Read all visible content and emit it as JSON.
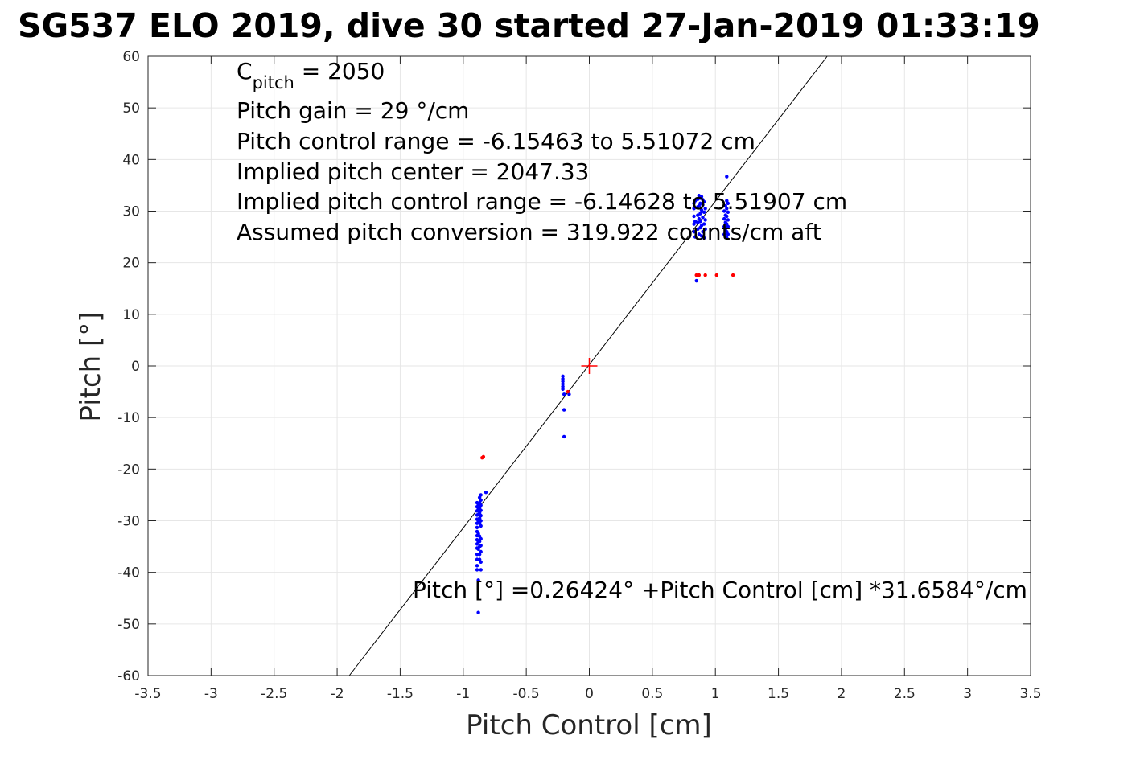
{
  "chart_data": {
    "type": "scatter",
    "title": "SG537 ELO 2019, dive 30 started 27-Jan-2019 01:33:19",
    "xlabel": "Pitch Control [cm]",
    "ylabel": "Pitch [°]",
    "xlim": [
      -3.5,
      3.5
    ],
    "ylim": [
      -60,
      60
    ],
    "xticks": [
      -3.5,
      -3,
      -2.5,
      -2,
      -1.5,
      -1,
      -0.5,
      0,
      0.5,
      1,
      1.5,
      2,
      2.5,
      3,
      3.5
    ],
    "yticks": [
      -60,
      -50,
      -40,
      -30,
      -20,
      -10,
      0,
      10,
      20,
      30,
      40,
      50,
      60
    ],
    "xtick_labels": [
      "-3.5",
      "-3",
      "-2.5",
      "-2",
      "-1.5",
      "-1",
      "-0.5",
      "0",
      "0.5",
      "1",
      "1.5",
      "2",
      "2.5",
      "3",
      "3.5"
    ],
    "ytick_labels": [
      "-60",
      "-50",
      "-40",
      "-30",
      "-20",
      "-10",
      "0",
      "10",
      "20",
      "30",
      "40",
      "50",
      "60"
    ],
    "grid": true,
    "annotations": {
      "cpitch_main": "C",
      "cpitch_sub": "pitch",
      "cpitch_value": " = 2050",
      "pitch_gain": "Pitch gain = 29 °/cm",
      "control_range": "Pitch control range = -6.15463 to 5.51072 cm",
      "implied_center": "Implied pitch center = 2047.33",
      "implied_range": "Implied pitch control range = -6.14628 to 5.51907 cm",
      "conversion": "Assumed pitch conversion = 319.922 counts/cm aft",
      "fit_equation": "Pitch [°] =0.26424° +Pitch Control [cm] *31.6584°/cm"
    },
    "fit_line": {
      "intercept": 0.26424,
      "slope": 31.6584,
      "color": "#000000"
    },
    "center_marker": {
      "x": 0,
      "y": 0,
      "color": "#ff0000",
      "symbol": "+"
    },
    "series": [
      {
        "color": "#0000ff",
        "points": [
          [
            -0.89,
            -26.5
          ],
          [
            -0.89,
            -27.3
          ],
          [
            -0.89,
            -28.1
          ],
          [
            -0.89,
            -28.9
          ],
          [
            -0.89,
            -29.7
          ],
          [
            -0.89,
            -30.5
          ],
          [
            -0.89,
            -31.3
          ],
          [
            -0.89,
            -32.1
          ],
          [
            -0.89,
            -32.9
          ],
          [
            -0.89,
            -33.7
          ],
          [
            -0.89,
            -34.5
          ],
          [
            -0.89,
            -35.3
          ],
          [
            -0.89,
            -36.5
          ],
          [
            -0.89,
            -37.5
          ],
          [
            -0.89,
            -38.7
          ],
          [
            -0.89,
            -39.5
          ],
          [
            -0.88,
            -41.5
          ],
          [
            -0.88,
            -47.8
          ],
          [
            -0.87,
            -25.5
          ],
          [
            -0.87,
            -26.5
          ],
          [
            -0.87,
            -27.5
          ],
          [
            -0.87,
            -28.5
          ],
          [
            -0.87,
            -29.5
          ],
          [
            -0.87,
            -30.5
          ],
          [
            -0.87,
            -33.0
          ],
          [
            -0.87,
            -34.0
          ],
          [
            -0.87,
            -35.0
          ],
          [
            -0.87,
            -36.5
          ],
          [
            -0.87,
            -37.5
          ],
          [
            -0.86,
            -25.0
          ],
          [
            -0.86,
            -26.0
          ],
          [
            -0.86,
            -27.0
          ],
          [
            -0.86,
            -28.0
          ],
          [
            -0.86,
            -29.0
          ],
          [
            -0.86,
            -30.0
          ],
          [
            -0.86,
            -31.0
          ],
          [
            -0.86,
            -33.5
          ],
          [
            -0.86,
            -34.8
          ],
          [
            -0.86,
            -36.0
          ],
          [
            -0.86,
            -38.0
          ],
          [
            -0.86,
            -39.5
          ],
          [
            -0.88,
            -26.8
          ],
          [
            -0.88,
            -27.8
          ],
          [
            -0.88,
            -28.8
          ],
          [
            -0.88,
            -30.0
          ],
          [
            -0.88,
            -32.5
          ],
          [
            -0.88,
            -34.0
          ],
          [
            -0.88,
            -35.5
          ],
          [
            -0.82,
            -24.5
          ],
          [
            -0.21,
            -2.0
          ],
          [
            -0.21,
            -2.5
          ],
          [
            -0.21,
            -3.0
          ],
          [
            -0.21,
            -3.5
          ],
          [
            -0.21,
            -4.0
          ],
          [
            -0.21,
            -4.5
          ],
          [
            -0.2,
            -5.5
          ],
          [
            -0.2,
            -8.5
          ],
          [
            -0.2,
            -13.7
          ],
          [
            -0.16,
            -5.5
          ],
          [
            0.83,
            26.0
          ],
          [
            0.83,
            27.5
          ],
          [
            0.83,
            29.0
          ],
          [
            0.83,
            30.5
          ],
          [
            0.83,
            31.5
          ],
          [
            0.84,
            25.0
          ],
          [
            0.84,
            28.0
          ],
          [
            0.84,
            32.0
          ],
          [
            0.85,
            16.5
          ],
          [
            0.86,
            26.5
          ],
          [
            0.86,
            27.8
          ],
          [
            0.86,
            29.2
          ],
          [
            0.86,
            30.8
          ],
          [
            0.86,
            32.3
          ],
          [
            0.87,
            25.5
          ],
          [
            0.87,
            28.5
          ],
          [
            0.87,
            31.0
          ],
          [
            0.87,
            33.0
          ],
          [
            0.88,
            26.8
          ],
          [
            0.88,
            28.0
          ],
          [
            0.88,
            29.5
          ],
          [
            0.88,
            31.5
          ],
          [
            0.88,
            32.5
          ],
          [
            0.89,
            25.2
          ],
          [
            0.89,
            27.2
          ],
          [
            0.89,
            30.2
          ],
          [
            0.89,
            32.8
          ],
          [
            0.9,
            26.0
          ],
          [
            0.9,
            28.8
          ],
          [
            0.9,
            31.2
          ],
          [
            0.9,
            32.2
          ],
          [
            0.91,
            24.8
          ],
          [
            0.91,
            27.5
          ],
          [
            0.91,
            29.8
          ],
          [
            0.91,
            31.8
          ],
          [
            0.92,
            26.5
          ],
          [
            0.92,
            28.3
          ],
          [
            0.92,
            30.5
          ],
          [
            1.07,
            25.5
          ],
          [
            1.07,
            27.0
          ],
          [
            1.07,
            28.5
          ],
          [
            1.07,
            30.0
          ],
          [
            1.08,
            25.0
          ],
          [
            1.08,
            26.3
          ],
          [
            1.08,
            27.8
          ],
          [
            1.08,
            29.2
          ],
          [
            1.08,
            31.0
          ],
          [
            1.09,
            24.8
          ],
          [
            1.09,
            26.0
          ],
          [
            1.09,
            27.5
          ],
          [
            1.09,
            29.0
          ],
          [
            1.09,
            30.5
          ],
          [
            1.09,
            32.0
          ],
          [
            1.09,
            36.7
          ],
          [
            1.1,
            25.5
          ],
          [
            1.1,
            27.0
          ],
          [
            1.1,
            28.3
          ],
          [
            1.1,
            29.8
          ],
          [
            1.1,
            31.5
          ]
        ]
      },
      {
        "color": "#ff0000",
        "points": [
          [
            -0.85,
            -17.8
          ],
          [
            -0.84,
            -17.6
          ],
          [
            -0.17,
            -5.0
          ],
          [
            0.85,
            17.6
          ],
          [
            0.87,
            17.6
          ],
          [
            0.92,
            17.6
          ],
          [
            1.01,
            17.6
          ],
          [
            1.14,
            17.6
          ]
        ]
      }
    ]
  }
}
